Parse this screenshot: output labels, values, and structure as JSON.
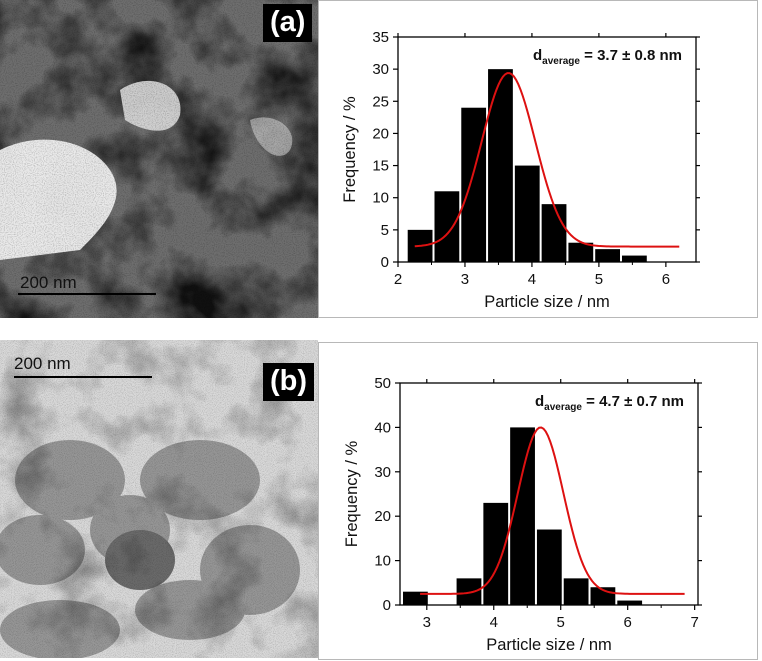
{
  "panels": [
    {
      "label": "(a)",
      "scale_bar_text": "200 nm",
      "scale_position": "bottom-left",
      "image_tone": "dark"
    },
    {
      "label": "(b)",
      "scale_bar_text": "200 nm",
      "scale_position": "top-left",
      "image_tone": "light"
    }
  ],
  "colors": {
    "bars": "#000000",
    "fit_curve": "#dd1111",
    "axis": "#000000"
  },
  "chart_data": [
    {
      "type": "bar",
      "xlabel": "Particle size / nm",
      "ylabel": "Frequency / %",
      "annotation": {
        "prefix": "d",
        "subscript": "average",
        "suffix": " = 3.7 ± 0.8 nm"
      },
      "xlim": [
        2,
        6.45
      ],
      "ylim": [
        0,
        35
      ],
      "xticks": [
        2,
        3,
        4,
        5,
        6
      ],
      "yticks": [
        0,
        5,
        10,
        15,
        20,
        25,
        30,
        35
      ],
      "bin_width": 0.4,
      "bin_centers": [
        2.33,
        2.73,
        3.13,
        3.53,
        3.93,
        4.33,
        4.73,
        5.13,
        5.53,
        5.93,
        6.33
      ],
      "values": [
        5,
        11,
        24,
        30,
        15,
        9,
        3,
        2,
        1,
        0,
        0
      ],
      "fit": {
        "type": "gaussian",
        "y0": 2.4,
        "xc": 3.65,
        "w": 0.8,
        "amp": 27,
        "x_range": [
          2.25,
          6.2
        ]
      },
      "grid": false,
      "legend": "none"
    },
    {
      "type": "bar",
      "xlabel": "Particle size / nm",
      "ylabel": "Frequency / %",
      "annotation": {
        "prefix": "d",
        "subscript": "average",
        "suffix": " = 4.7 ± 0.7 nm"
      },
      "xlim": [
        2.6,
        7.05
      ],
      "ylim": [
        0,
        50
      ],
      "xticks": [
        3,
        4,
        5,
        6,
        7
      ],
      "yticks": [
        0,
        10,
        20,
        30,
        40,
        50
      ],
      "bin_width": 0.4,
      "bin_centers": [
        2.83,
        3.23,
        3.63,
        4.03,
        4.43,
        4.83,
        5.23,
        5.63,
        6.03,
        6.43,
        6.83
      ],
      "values": [
        3,
        0,
        6,
        23,
        40,
        17,
        6,
        4,
        1,
        0,
        0
      ],
      "fit": {
        "type": "gaussian",
        "y0": 2.5,
        "xc": 4.7,
        "w": 0.68,
        "amp": 37.5,
        "x_range": [
          2.9,
          6.85
        ]
      },
      "grid": false,
      "legend": "none"
    }
  ]
}
